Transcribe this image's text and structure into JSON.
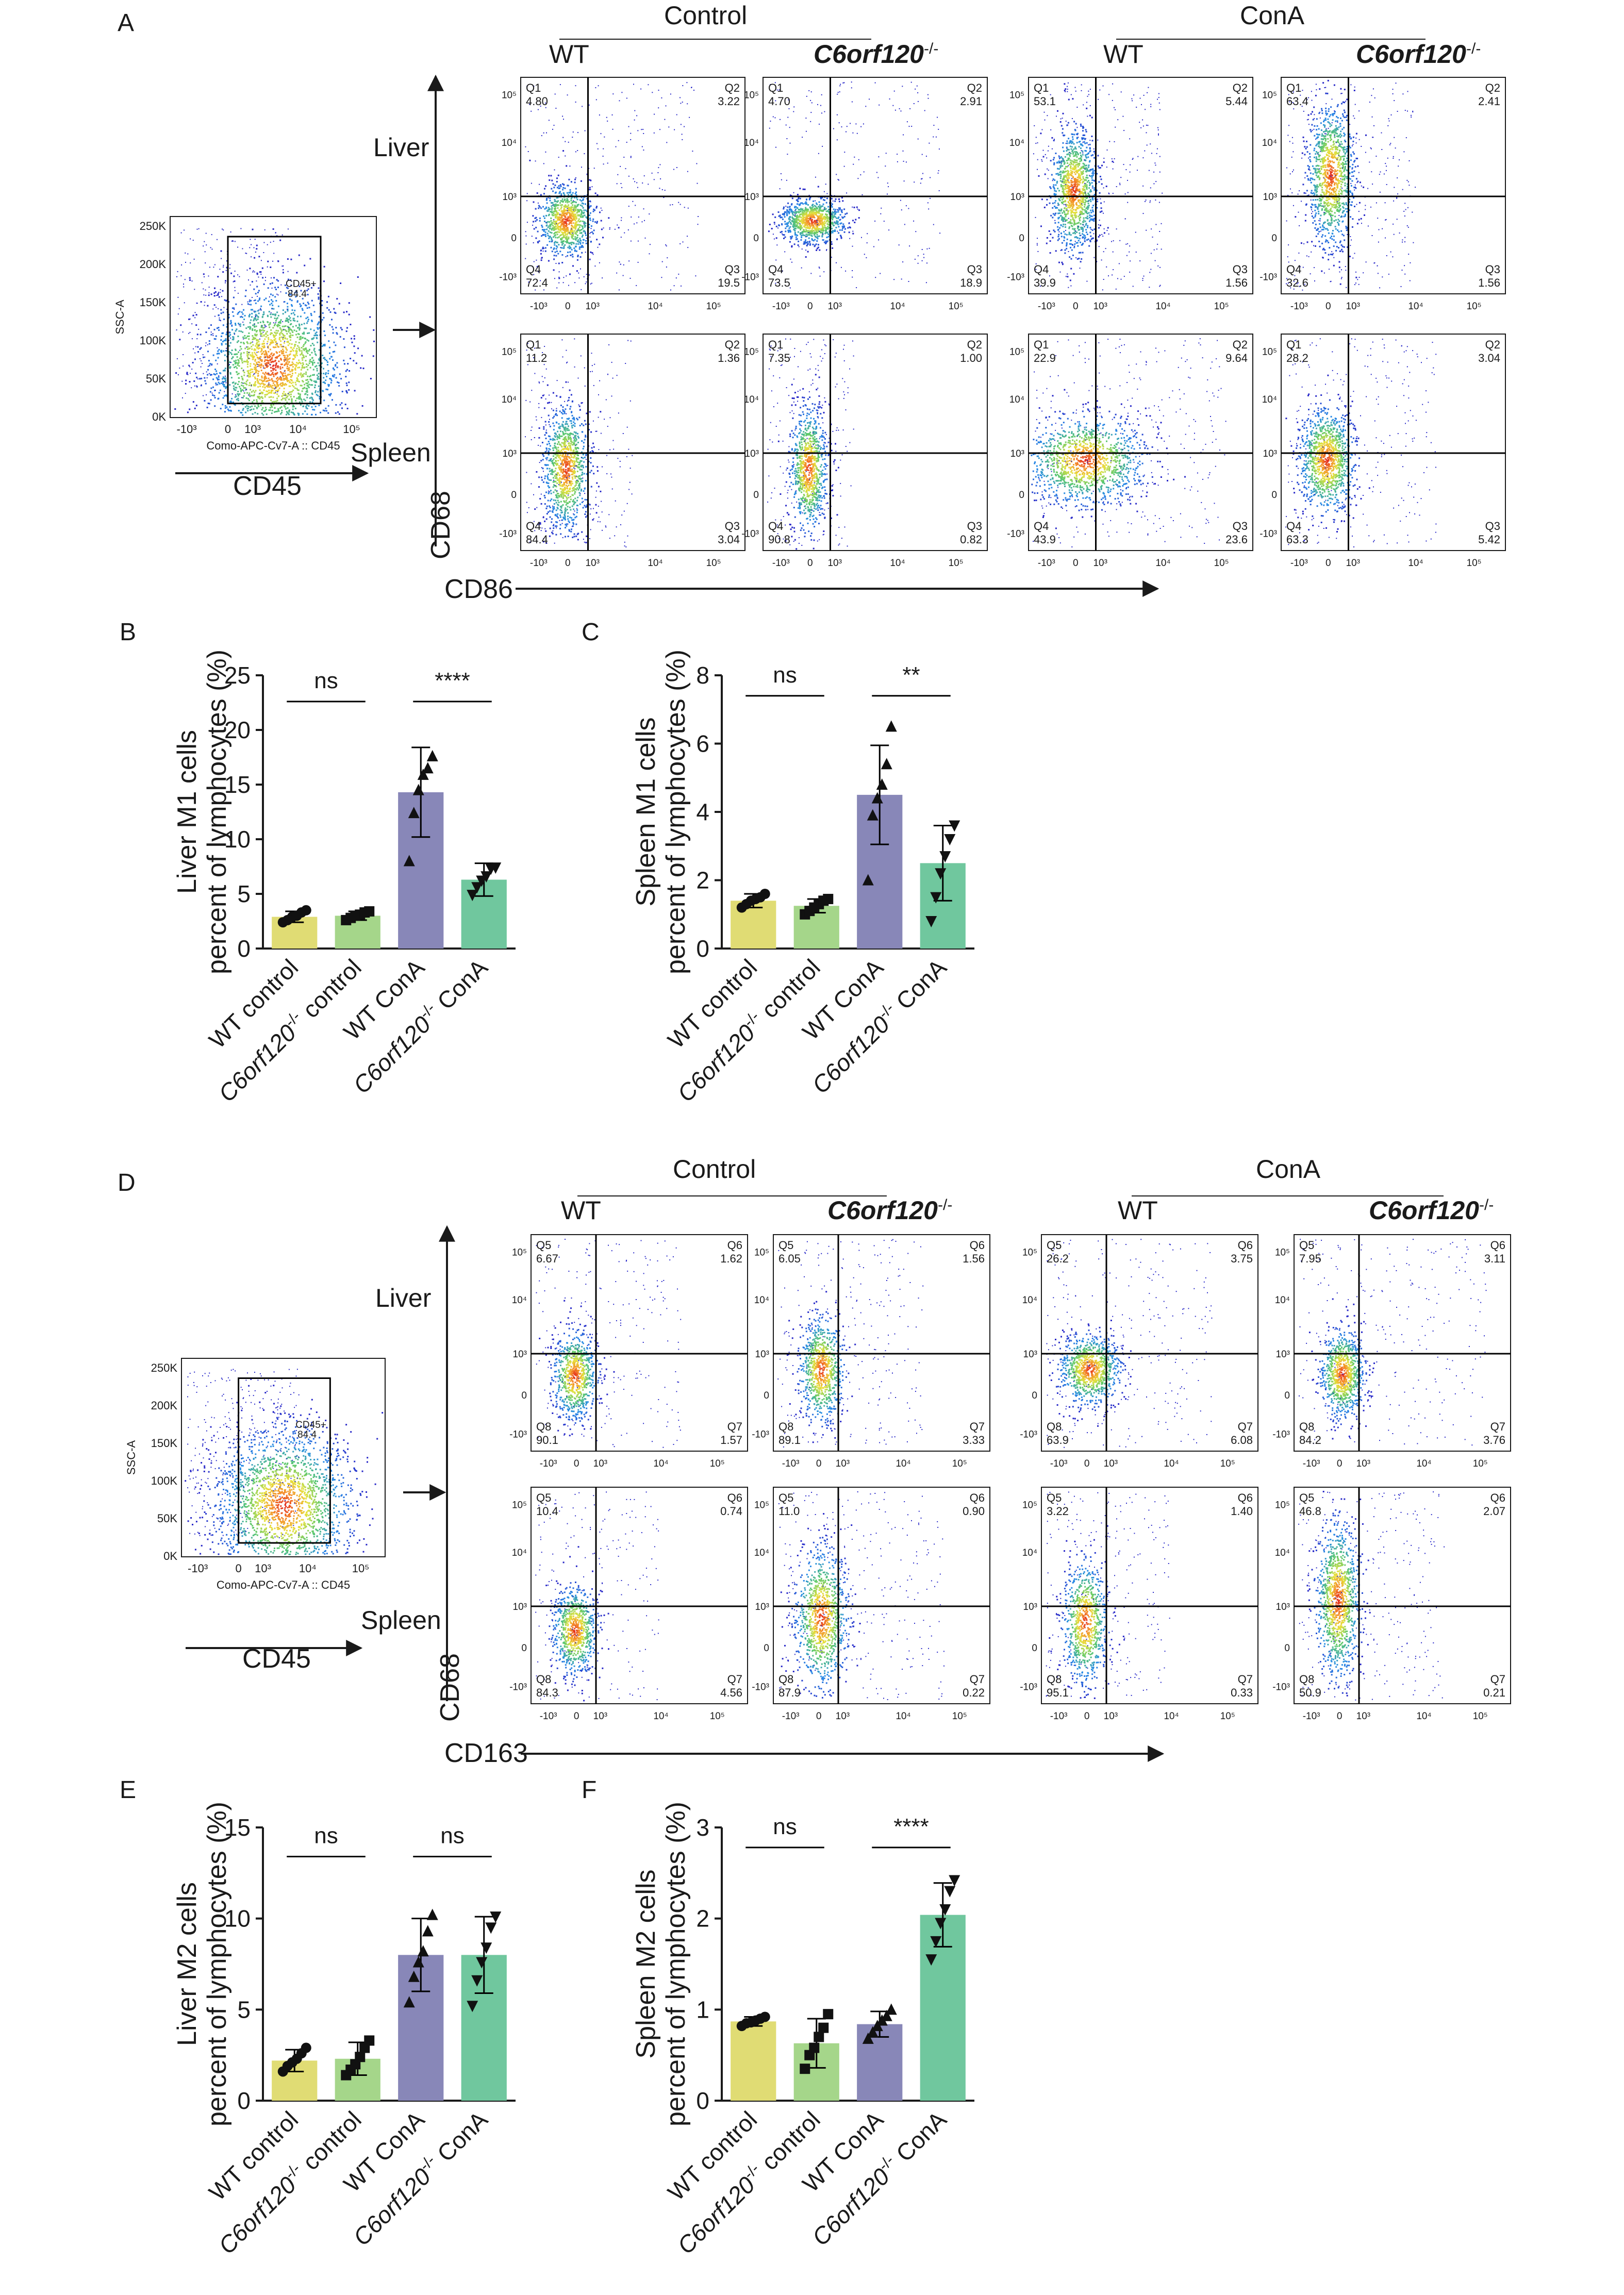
{
  "panel_labels": {
    "a": "A",
    "b": "B",
    "c": "C",
    "d": "D",
    "e": "E",
    "f": "F"
  },
  "flow_groups": {
    "control": "Control",
    "cona": "ConA",
    "wt": "WT",
    "ko_prefix": "C6orf120",
    "ko_sup": "-/-"
  },
  "gating": {
    "x_label": "CD45",
    "detail_x_label": "Como-APC-Cv7-A :: CD45",
    "detail_y_label": "SSC-A",
    "gate_label": "CD45+",
    "gate_value_a": "84.4",
    "gate_value_d": "84.4",
    "y_ticks": [
      "250K",
      "200K",
      "150K",
      "100K",
      "50K",
      "0K"
    ],
    "x_ticks": [
      "-10³",
      "0",
      "10³",
      "10⁴",
      "10⁵"
    ]
  },
  "flow_axes": {
    "tick_y": [
      "10⁵",
      "10⁴",
      "10³",
      "0",
      "-10³"
    ],
    "tick_x": [
      "-10³",
      "0",
      "10³",
      "10⁴",
      "10⁵"
    ]
  },
  "panel_a": {
    "row_liver": "Liver",
    "row_spleen": "Spleen",
    "y_marker": "CD68",
    "x_marker": "CD86",
    "quad_names": [
      "Q1",
      "Q2",
      "Q3",
      "Q4"
    ],
    "plots": [
      {
        "q1": "4.80",
        "q2": "3.22",
        "q3": "19.5",
        "q4": "72.4"
      },
      {
        "q1": "4.70",
        "q2": "2.91",
        "q3": "18.9",
        "q4": "73.5"
      },
      {
        "q1": "53.1",
        "q2": "5.44",
        "q3": "1.56",
        "q4": "39.9"
      },
      {
        "q1": "63.4",
        "q2": "2.41",
        "q3": "1.56",
        "q4": "32.6"
      },
      {
        "q1": "11.2",
        "q2": "1.36",
        "q3": "3.04",
        "q4": "84.4"
      },
      {
        "q1": "7.35",
        "q2": "1.00",
        "q3": "0.82",
        "q4": "90.8"
      },
      {
        "q1": "22.9",
        "q2": "9.64",
        "q3": "23.6",
        "q4": "43.9"
      },
      {
        "q1": "28.2",
        "q2": "3.04",
        "q3": "5.42",
        "q4": "63.3"
      }
    ]
  },
  "panel_d": {
    "row_liver": "Liver",
    "row_spleen": "Spleen",
    "y_marker": "CD68",
    "x_marker": "CD163",
    "quad_names": [
      "Q5",
      "Q6",
      "Q7",
      "Q8"
    ],
    "plots": [
      {
        "q1": "6.67",
        "q2": "1.62",
        "q3": "1.57",
        "q4": "90.1"
      },
      {
        "q1": "6.05",
        "q2": "1.56",
        "q3": "3.33",
        "q4": "89.1"
      },
      {
        "q1": "26.2",
        "q2": "3.75",
        "q3": "6.08",
        "q4": "63.9"
      },
      {
        "q1": "7.95",
        "q2": "3.11",
        "q3": "3.76",
        "q4": "84.2"
      },
      {
        "q1": "10.4",
        "q2": "0.74",
        "q3": "4.56",
        "q4": "84.3"
      },
      {
        "q1": "11.0",
        "q2": "0.90",
        "q3": "0.22",
        "q4": "87.9"
      },
      {
        "q1": "3.22",
        "q2": "1.40",
        "q3": "0.33",
        "q4": "95.1"
      },
      {
        "q1": "46.8",
        "q2": "2.07",
        "q3": "0.21",
        "q4": "50.9"
      }
    ]
  },
  "bar_ylabel_suffix": "percent of lymphocytes (%)",
  "bar_categories": [
    {
      "pre": "WT control",
      "it": "",
      "sup": "",
      "post": ""
    },
    {
      "pre": "",
      "it": "C6orf120",
      "sup": "-/-",
      "post": " control"
    },
    {
      "pre": "WT ConA",
      "it": "",
      "sup": "",
      "post": ""
    },
    {
      "pre": "",
      "it": "C6orf120",
      "sup": "-/-",
      "post": " ConA"
    }
  ],
  "chart_data": [
    {
      "type": "bar",
      "panel": "B",
      "ylabel": "Liver M1 cells",
      "categories": [
        "WT control",
        "C6orf120-/- control",
        "WT ConA",
        "C6orf120-/- ConA"
      ],
      "ylim": [
        0,
        25
      ],
      "yticks": [
        0,
        5,
        10,
        15,
        20,
        25
      ],
      "values": [
        2.9,
        3.0,
        14.3,
        6.3
      ],
      "sd": [
        0.5,
        0.4,
        4.1,
        1.5
      ],
      "points": [
        [
          2.4,
          2.6,
          2.9,
          3.0,
          3.3,
          3.5
        ],
        [
          2.6,
          2.8,
          3.0,
          3.1,
          3.3,
          3.4
        ],
        [
          8.0,
          12.4,
          14.5,
          15.9,
          16.5,
          17.6
        ],
        [
          4.9,
          5.6,
          6.2,
          6.6,
          7.3,
          7.4
        ]
      ],
      "markers": [
        "circle",
        "square",
        "triangle",
        "triangle-down"
      ],
      "significance": [
        {
          "pair": [
            0,
            1
          ],
          "label": "ns",
          "y": 22.6
        },
        {
          "pair": [
            2,
            3
          ],
          "label": "****",
          "y": 22.6
        }
      ]
    },
    {
      "type": "bar",
      "panel": "C",
      "ylabel": "Spleen M1 cells",
      "categories": [
        "WT control",
        "C6orf120-/- control",
        "WT ConA",
        "C6orf120-/- ConA"
      ],
      "ylim": [
        0,
        8
      ],
      "yticks": [
        0,
        2,
        4,
        6,
        8
      ],
      "values": [
        1.4,
        1.25,
        4.5,
        2.5
      ],
      "sd": [
        0.2,
        0.2,
        1.45,
        1.1
      ],
      "points": [
        [
          1.2,
          1.3,
          1.4,
          1.45,
          1.5,
          1.6
        ],
        [
          1.0,
          1.1,
          1.2,
          1.3,
          1.4,
          1.45
        ],
        [
          2.0,
          3.9,
          4.4,
          4.8,
          5.4,
          6.5
        ],
        [
          0.8,
          1.5,
          2.2,
          2.7,
          3.2,
          3.6
        ]
      ],
      "markers": [
        "circle",
        "square",
        "triangle",
        "triangle-down"
      ],
      "significance": [
        {
          "pair": [
            0,
            1
          ],
          "label": "ns",
          "y": 7.4
        },
        {
          "pair": [
            2,
            3
          ],
          "label": "**",
          "y": 7.4
        }
      ]
    },
    {
      "type": "bar",
      "panel": "E",
      "ylabel": "Liver M2 cells",
      "categories": [
        "WT control",
        "C6orf120-/- control",
        "WT ConA",
        "C6orf120-/- ConA"
      ],
      "ylim": [
        0,
        15
      ],
      "yticks": [
        0,
        5,
        10,
        15
      ],
      "values": [
        2.2,
        2.3,
        8.0,
        8.0
      ],
      "sd": [
        0.6,
        0.9,
        2.0,
        2.1
      ],
      "points": [
        [
          1.6,
          1.9,
          2.1,
          2.3,
          2.6,
          2.9
        ],
        [
          1.4,
          1.7,
          2.0,
          2.4,
          2.9,
          3.3
        ],
        [
          5.4,
          6.8,
          7.6,
          8.2,
          9.3,
          10.2
        ],
        [
          5.2,
          6.6,
          7.6,
          8.4,
          9.5,
          10.1
        ]
      ],
      "markers": [
        "circle",
        "square",
        "triangle",
        "triangle-down"
      ],
      "significance": [
        {
          "pair": [
            0,
            1
          ],
          "label": "ns",
          "y": 13.4
        },
        {
          "pair": [
            2,
            3
          ],
          "label": "ns",
          "y": 13.4
        }
      ]
    },
    {
      "type": "bar",
      "panel": "F",
      "ylabel": "Spleen M2 cells",
      "categories": [
        "WT control",
        "C6orf120-/- control",
        "WT ConA",
        "C6orf120-/- ConA"
      ],
      "ylim": [
        0,
        3
      ],
      "yticks": [
        0,
        1,
        2,
        3
      ],
      "values": [
        0.87,
        0.63,
        0.84,
        2.04
      ],
      "sd": [
        0.05,
        0.27,
        0.14,
        0.35
      ],
      "points": [
        [
          0.82,
          0.85,
          0.86,
          0.88,
          0.9,
          0.92
        ],
        [
          0.35,
          0.5,
          0.58,
          0.7,
          0.8,
          0.95
        ],
        [
          0.68,
          0.75,
          0.82,
          0.88,
          0.93,
          1.0
        ],
        [
          1.55,
          1.75,
          1.95,
          2.1,
          2.3,
          2.42
        ]
      ],
      "markers": [
        "circle",
        "square",
        "triangle",
        "triangle-down"
      ],
      "significance": [
        {
          "pair": [
            0,
            1
          ],
          "label": "ns",
          "y": 2.78
        },
        {
          "pair": [
            2,
            3
          ],
          "label": "****",
          "y": 2.78
        }
      ]
    }
  ],
  "colors": {
    "bar_wt_control": "#e0dc74",
    "bar_ko_control": "#a5d68a",
    "bar_wt_cona": "#8887b8",
    "bar_ko_cona": "#70c79e",
    "dot_fill": "#111111"
  }
}
